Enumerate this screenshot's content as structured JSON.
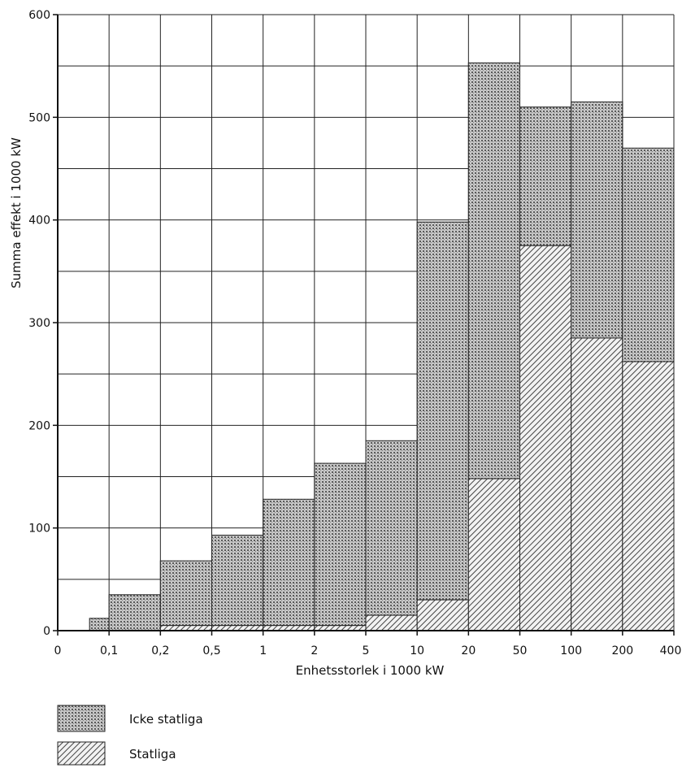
{
  "chart_data": {
    "type": "bar",
    "title": "",
    "xlabel": "Enhetsstorlek i 1000 kW",
    "ylabel": "Summa effekt i 1000 kW",
    "x_ticks": [
      "0",
      "0,1",
      "0,2",
      "0,5",
      "1",
      "2",
      "5",
      "10",
      "20",
      "50",
      "100",
      "200",
      "400"
    ],
    "y_ticks": [
      "0",
      "100",
      "200",
      "300",
      "400",
      "500",
      "600"
    ],
    "ylim": [
      0,
      600
    ],
    "grid": true,
    "legend_position": "bottom-left",
    "categories": [
      "0,1–0,2",
      "0,2–0,5",
      "0,5–1",
      "1–2",
      "2–5",
      "5–10",
      "10–20",
      "20–50",
      "50–100",
      "100–200",
      "200–400"
    ],
    "series": [
      {
        "name": "Icke statliga",
        "total_values": [
          35,
          68,
          93,
          128,
          163,
          185,
          398,
          553,
          510,
          515,
          470
        ],
        "color": "#9a9a9a"
      },
      {
        "name": "Statliga",
        "values": [
          0,
          5,
          5,
          5,
          5,
          15,
          30,
          148,
          375,
          285,
          262
        ],
        "color": "#cfcfcf"
      }
    ],
    "extra_bars": [
      {
        "range": "0–0,1",
        "total": 12,
        "statliga": 0
      }
    ]
  }
}
